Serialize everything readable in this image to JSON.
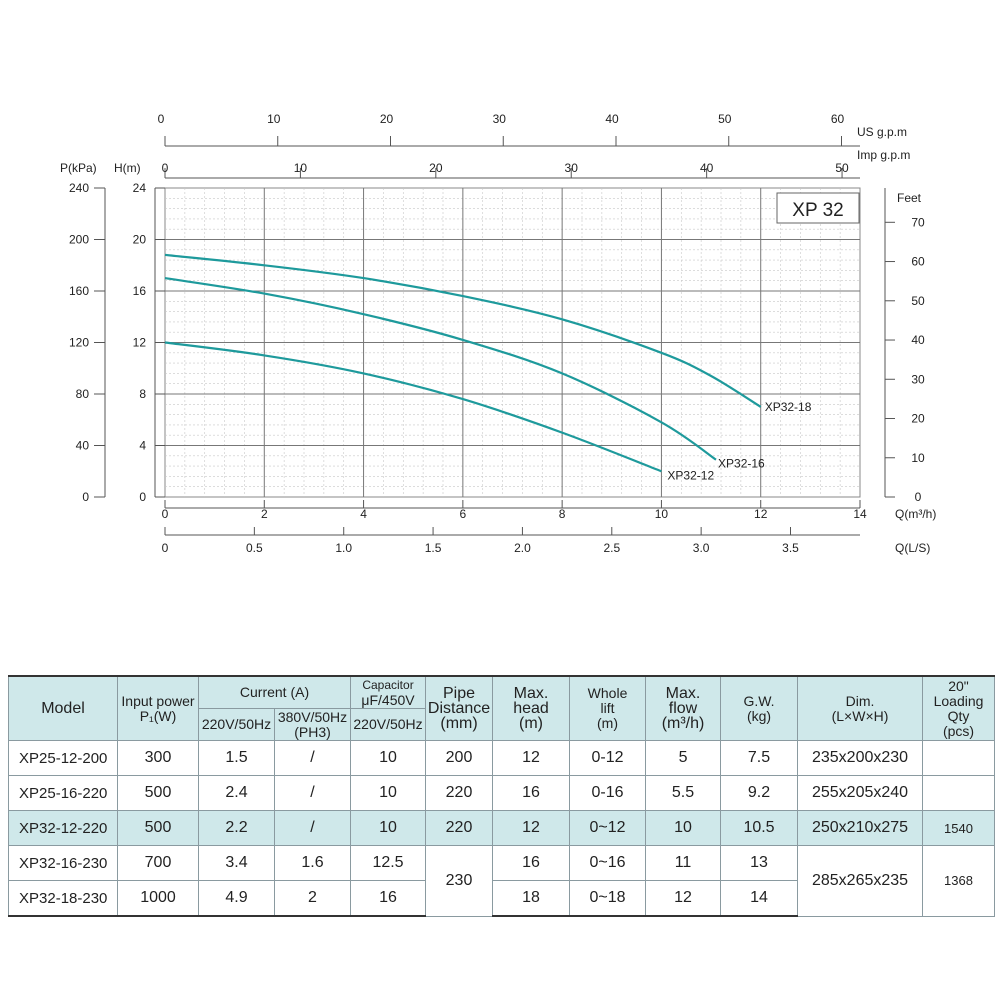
{
  "chart_data": {
    "type": "line",
    "title": "XP 32",
    "x": {
      "label": "Q(m³/h)",
      "range": [
        0,
        14
      ],
      "ticks": [
        0,
        2,
        4,
        6,
        8,
        10,
        12,
        14
      ]
    },
    "y": {
      "label": "H(m)",
      "range": [
        0,
        24
      ],
      "ticks": [
        0,
        4,
        8,
        12,
        16,
        20,
        24
      ]
    },
    "secondary_axes": {
      "pressure": {
        "label": "P(kPa)",
        "range": [
          0,
          240
        ],
        "ticks": [
          0,
          40,
          80,
          120,
          160,
          200,
          240
        ]
      },
      "feet": {
        "label": "Feet",
        "ticks": [
          0,
          10,
          20,
          30,
          40,
          50,
          60,
          70
        ]
      },
      "us_gpm": {
        "label": "US  g.p.m",
        "ticks": [
          0,
          10,
          20,
          30,
          40,
          50,
          60
        ]
      },
      "imp_gpm": {
        "label": "Imp  g.p.m",
        "ticks": [
          0,
          10,
          20,
          30,
          40,
          50
        ]
      },
      "ls": {
        "label": "Q(L/S)",
        "ticks": [
          "0",
          "0.5",
          "1.0",
          "1.5",
          "2.0",
          "2.5",
          "3.0",
          "3.5"
        ]
      }
    },
    "series": [
      {
        "name": "XP32-18",
        "points": [
          [
            0,
            18.8
          ],
          [
            2,
            18.0
          ],
          [
            4,
            17.0
          ],
          [
            6,
            15.6
          ],
          [
            8,
            13.8
          ],
          [
            10,
            11.2
          ],
          [
            11,
            9.4
          ],
          [
            12,
            7.0
          ]
        ]
      },
      {
        "name": "XP32-16",
        "points": [
          [
            0,
            17.0
          ],
          [
            2,
            15.8
          ],
          [
            4,
            14.2
          ],
          [
            6,
            12.2
          ],
          [
            8,
            9.6
          ],
          [
            10,
            5.8
          ],
          [
            11.1,
            2.9
          ]
        ]
      },
      {
        "name": "XP32-12",
        "points": [
          [
            0,
            12.0
          ],
          [
            2,
            11.0
          ],
          [
            4,
            9.6
          ],
          [
            6,
            7.6
          ],
          [
            8,
            5.0
          ],
          [
            10,
            2.0
          ]
        ]
      }
    ]
  },
  "table": {
    "headers": {
      "model": "Model",
      "input_power": "Input power",
      "input_power_unit": "P₁(W)",
      "current": "Current  (A)",
      "current_1ph": "220V/50Hz",
      "current_3ph": "380V/50Hz",
      "current_3ph_sub": "(PH3)",
      "capacitor": "Capacitor",
      "capacitor_rating": "μF/450V",
      "capacitor_voltage": "220V/50Hz",
      "pipe_1": "Pipe",
      "pipe_2": "Distance",
      "pipe_3": "(mm)",
      "max_head_1": "Max.",
      "max_head_2": "head",
      "max_head_3": "(m)",
      "lift_1": "Whole",
      "lift_2": "lift",
      "lift_3": "(m)",
      "max_flow_1": "Max.",
      "max_flow_2": "flow",
      "max_flow_3": "(m³/h)",
      "gw_1": "G.W.",
      "gw_2": "(kg)",
      "dim_1": "Dim.",
      "dim_2": "(L×W×H)",
      "qty_1": "20\"",
      "qty_2": "Loading",
      "qty_3": "Qty",
      "qty_4": "(pcs)"
    },
    "rows": [
      {
        "model": "XP25-12-200",
        "power": "300",
        "cur1": "1.5",
        "cur3": "/",
        "cap": "10",
        "pipe": "200",
        "head": "12",
        "lift": "0-12",
        "flow": "5",
        "gw": "7.5",
        "dim": "235x200x230",
        "qty": ""
      },
      {
        "model": "XP25-16-220",
        "power": "500",
        "cur1": "2.4",
        "cur3": "/",
        "cap": "10",
        "pipe": "220",
        "head": "16",
        "lift": "0-16",
        "flow": "5.5",
        "gw": "9.2",
        "dim": "255x205x240",
        "qty": ""
      },
      {
        "model": "XP32-12-220",
        "power": "500",
        "cur1": "2.2",
        "cur3": "/",
        "cap": "10",
        "pipe": "220",
        "head": "12",
        "lift": "0~12",
        "flow": "10",
        "gw": "10.5",
        "dim": "250x210x275",
        "qty": "1540"
      },
      {
        "model": "XP32-16-230",
        "power": "700",
        "cur1": "3.4",
        "cur3": "1.6",
        "cap": "12.5",
        "pipe": "230",
        "head": "16",
        "lift": "0~16",
        "flow": "11",
        "gw": "13",
        "dim": "285x265x235",
        "qty": "1368"
      },
      {
        "model": "XP32-18-230",
        "power": "1000",
        "cur1": "4.9",
        "cur3": "2",
        "cap": "16",
        "pipe": "",
        "head": "18",
        "lift": "0~18",
        "flow": "12",
        "gw": "14",
        "dim": "",
        "qty": ""
      }
    ]
  }
}
